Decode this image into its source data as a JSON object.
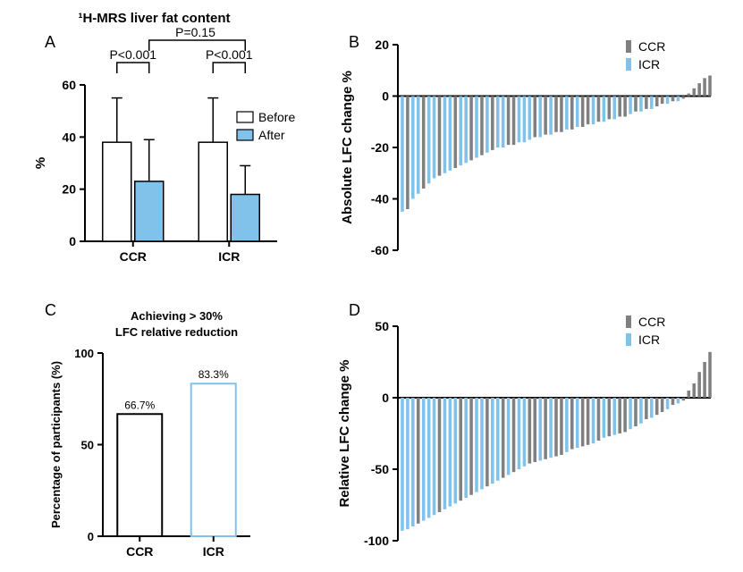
{
  "colors": {
    "white": "#ffffff",
    "black": "#000000",
    "lightblue": "#80c2ea",
    "gray": "#808080",
    "legendblue": "#80c2ea"
  },
  "panelA": {
    "label": "A",
    "title": "¹H-MRS liver fat content",
    "ylabel": "%",
    "ylim": [
      0,
      60
    ],
    "ytick_step": 20,
    "groups": [
      "CCR",
      "ICR"
    ],
    "series": [
      {
        "name": "Before",
        "color": "#ffffff",
        "values": [
          38,
          38
        ],
        "errors": [
          17,
          17
        ]
      },
      {
        "name": "After",
        "color": "#80c2ea",
        "values": [
          23,
          18
        ],
        "errors": [
          16,
          11
        ]
      }
    ],
    "sig_top": "P=0.15",
    "sig_left": "P<0.001",
    "sig_right": "P<0.001",
    "legend": [
      "Before",
      "After"
    ],
    "bar_width": 0.35,
    "axis_width": 2
  },
  "panelB": {
    "label": "B",
    "ylabel": "Absolute LFC change %",
    "ylim": [
      -60,
      20
    ],
    "ytick_step": 20,
    "legend": [
      {
        "label": "CCR",
        "color": "#808080"
      },
      {
        "label": "ICR",
        "color": "#80c2ea"
      }
    ],
    "bars": [
      {
        "v": -45,
        "c": "#80c2ea"
      },
      {
        "v": -44,
        "c": "#808080"
      },
      {
        "v": -40,
        "c": "#80c2ea"
      },
      {
        "v": -38,
        "c": "#80c2ea"
      },
      {
        "v": -36,
        "c": "#808080"
      },
      {
        "v": -34,
        "c": "#80c2ea"
      },
      {
        "v": -32,
        "c": "#80c2ea"
      },
      {
        "v": -31,
        "c": "#808080"
      },
      {
        "v": -30,
        "c": "#80c2ea"
      },
      {
        "v": -29,
        "c": "#80c2ea"
      },
      {
        "v": -28,
        "c": "#808080"
      },
      {
        "v": -27,
        "c": "#80c2ea"
      },
      {
        "v": -26,
        "c": "#80c2ea"
      },
      {
        "v": -25,
        "c": "#808080"
      },
      {
        "v": -24,
        "c": "#80c2ea"
      },
      {
        "v": -23,
        "c": "#808080"
      },
      {
        "v": -22,
        "c": "#80c2ea"
      },
      {
        "v": -21,
        "c": "#808080"
      },
      {
        "v": -20,
        "c": "#80c2ea"
      },
      {
        "v": -20,
        "c": "#80c2ea"
      },
      {
        "v": -19,
        "c": "#808080"
      },
      {
        "v": -19,
        "c": "#808080"
      },
      {
        "v": -18,
        "c": "#80c2ea"
      },
      {
        "v": -18,
        "c": "#80c2ea"
      },
      {
        "v": -17,
        "c": "#80c2ea"
      },
      {
        "v": -16,
        "c": "#808080"
      },
      {
        "v": -16,
        "c": "#80c2ea"
      },
      {
        "v": -15,
        "c": "#808080"
      },
      {
        "v": -15,
        "c": "#80c2ea"
      },
      {
        "v": -14,
        "c": "#808080"
      },
      {
        "v": -14,
        "c": "#808080"
      },
      {
        "v": -13,
        "c": "#80c2ea"
      },
      {
        "v": -13,
        "c": "#808080"
      },
      {
        "v": -12,
        "c": "#80c2ea"
      },
      {
        "v": -12,
        "c": "#808080"
      },
      {
        "v": -11,
        "c": "#808080"
      },
      {
        "v": -11,
        "c": "#80c2ea"
      },
      {
        "v": -10,
        "c": "#808080"
      },
      {
        "v": -10,
        "c": "#80c2ea"
      },
      {
        "v": -9,
        "c": "#808080"
      },
      {
        "v": -9,
        "c": "#80c2ea"
      },
      {
        "v": -8,
        "c": "#808080"
      },
      {
        "v": -8,
        "c": "#808080"
      },
      {
        "v": -7,
        "c": "#80c2ea"
      },
      {
        "v": -6,
        "c": "#808080"
      },
      {
        "v": -6,
        "c": "#80c2ea"
      },
      {
        "v": -5,
        "c": "#808080"
      },
      {
        "v": -5,
        "c": "#80c2ea"
      },
      {
        "v": -4,
        "c": "#808080"
      },
      {
        "v": -3,
        "c": "#808080"
      },
      {
        "v": -3,
        "c": "#80c2ea"
      },
      {
        "v": -2,
        "c": "#808080"
      },
      {
        "v": -2,
        "c": "#80c2ea"
      },
      {
        "v": -1,
        "c": "#808080"
      },
      {
        "v": 1,
        "c": "#808080"
      },
      {
        "v": 3,
        "c": "#808080"
      },
      {
        "v": 5,
        "c": "#808080"
      },
      {
        "v": 7,
        "c": "#808080"
      },
      {
        "v": 8,
        "c": "#808080"
      }
    ]
  },
  "panelC": {
    "label": "C",
    "title": "Achieving  > 30%\nLFC relative reduction",
    "ylabel": "Percentage of participants (%)",
    "ylim": [
      0,
      100
    ],
    "ytick_step": 50,
    "bars": [
      {
        "label": "CCR",
        "value": 66.7,
        "value_label": "66.7%",
        "stroke": "#000000",
        "fill": "#ffffff"
      },
      {
        "label": "ICR",
        "value": 83.3,
        "value_label": "83.3%",
        "stroke": "#80c2ea",
        "fill": "#ffffff"
      }
    ],
    "bar_width": 0.5
  },
  "panelD": {
    "label": "D",
    "ylabel": "Relative LFC change %",
    "ylim": [
      -100,
      50
    ],
    "yticks": [
      -100,
      -50,
      0,
      50
    ],
    "legend": [
      {
        "label": "CCR",
        "color": "#808080"
      },
      {
        "label": "ICR",
        "color": "#80c2ea"
      }
    ],
    "bars": [
      {
        "v": -93,
        "c": "#80c2ea"
      },
      {
        "v": -92,
        "c": "#80c2ea"
      },
      {
        "v": -90,
        "c": "#80c2ea"
      },
      {
        "v": -88,
        "c": "#808080"
      },
      {
        "v": -86,
        "c": "#80c2ea"
      },
      {
        "v": -84,
        "c": "#80c2ea"
      },
      {
        "v": -82,
        "c": "#80c2ea"
      },
      {
        "v": -80,
        "c": "#808080"
      },
      {
        "v": -78,
        "c": "#80c2ea"
      },
      {
        "v": -76,
        "c": "#80c2ea"
      },
      {
        "v": -74,
        "c": "#80c2ea"
      },
      {
        "v": -72,
        "c": "#808080"
      },
      {
        "v": -70,
        "c": "#80c2ea"
      },
      {
        "v": -68,
        "c": "#808080"
      },
      {
        "v": -66,
        "c": "#80c2ea"
      },
      {
        "v": -64,
        "c": "#80c2ea"
      },
      {
        "v": -62,
        "c": "#808080"
      },
      {
        "v": -60,
        "c": "#80c2ea"
      },
      {
        "v": -58,
        "c": "#80c2ea"
      },
      {
        "v": -56,
        "c": "#808080"
      },
      {
        "v": -54,
        "c": "#80c2ea"
      },
      {
        "v": -52,
        "c": "#808080"
      },
      {
        "v": -50,
        "c": "#80c2ea"
      },
      {
        "v": -48,
        "c": "#80c2ea"
      },
      {
        "v": -46,
        "c": "#808080"
      },
      {
        "v": -45,
        "c": "#808080"
      },
      {
        "v": -44,
        "c": "#80c2ea"
      },
      {
        "v": -43,
        "c": "#808080"
      },
      {
        "v": -42,
        "c": "#80c2ea"
      },
      {
        "v": -41,
        "c": "#808080"
      },
      {
        "v": -40,
        "c": "#808080"
      },
      {
        "v": -38,
        "c": "#80c2ea"
      },
      {
        "v": -36,
        "c": "#808080"
      },
      {
        "v": -35,
        "c": "#80c2ea"
      },
      {
        "v": -34,
        "c": "#808080"
      },
      {
        "v": -33,
        "c": "#808080"
      },
      {
        "v": -32,
        "c": "#80c2ea"
      },
      {
        "v": -30,
        "c": "#808080"
      },
      {
        "v": -28,
        "c": "#80c2ea"
      },
      {
        "v": -27,
        "c": "#808080"
      },
      {
        "v": -26,
        "c": "#80c2ea"
      },
      {
        "v": -25,
        "c": "#808080"
      },
      {
        "v": -24,
        "c": "#808080"
      },
      {
        "v": -22,
        "c": "#80c2ea"
      },
      {
        "v": -20,
        "c": "#808080"
      },
      {
        "v": -18,
        "c": "#80c2ea"
      },
      {
        "v": -15,
        "c": "#808080"
      },
      {
        "v": -14,
        "c": "#80c2ea"
      },
      {
        "v": -12,
        "c": "#808080"
      },
      {
        "v": -10,
        "c": "#808080"
      },
      {
        "v": -8,
        "c": "#80c2ea"
      },
      {
        "v": -5,
        "c": "#808080"
      },
      {
        "v": -4,
        "c": "#80c2ea"
      },
      {
        "v": -2,
        "c": "#808080"
      },
      {
        "v": 5,
        "c": "#808080"
      },
      {
        "v": 10,
        "c": "#808080"
      },
      {
        "v": 18,
        "c": "#808080"
      },
      {
        "v": 25,
        "c": "#808080"
      },
      {
        "v": 32,
        "c": "#808080"
      }
    ]
  }
}
